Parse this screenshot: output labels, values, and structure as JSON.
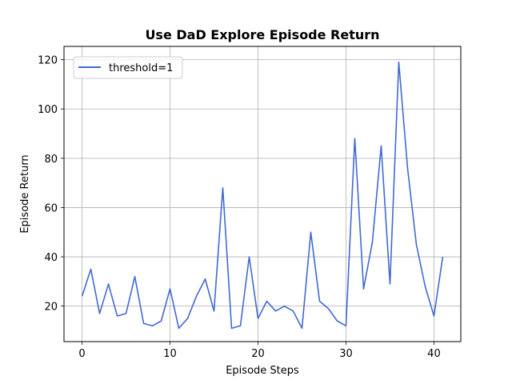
{
  "chart_data": {
    "type": "line",
    "title": "Use DaD Explore Episode Return",
    "xlabel": "Episode Steps",
    "ylabel": "Episode Return",
    "xlim": [
      -2.05,
      43.05
    ],
    "ylim": [
      5.6,
      125.4
    ],
    "xticks": [
      0,
      10,
      20,
      30,
      40
    ],
    "yticks": [
      20,
      40,
      60,
      80,
      100,
      120
    ],
    "grid": true,
    "legend_position": "upper-left",
    "series": [
      {
        "name": "threshold=1",
        "color": "#4169d2",
        "x": [
          0,
          1,
          2,
          3,
          4,
          5,
          6,
          7,
          8,
          9,
          10,
          11,
          12,
          13,
          14,
          15,
          16,
          17,
          18,
          19,
          20,
          21,
          22,
          23,
          24,
          25,
          26,
          27,
          28,
          29,
          30,
          31,
          32,
          33,
          34,
          35,
          36,
          37,
          38,
          39,
          40,
          41
        ],
        "y": [
          24,
          35,
          17,
          29,
          16,
          17,
          32,
          13,
          12,
          14,
          27,
          11,
          15,
          24,
          31,
          18,
          68,
          11,
          12,
          40,
          15,
          22,
          18,
          20,
          18,
          11,
          50,
          22,
          19,
          14,
          12,
          88,
          27,
          46,
          85,
          29,
          119,
          76,
          45,
          28,
          16,
          40
        ]
      }
    ]
  }
}
